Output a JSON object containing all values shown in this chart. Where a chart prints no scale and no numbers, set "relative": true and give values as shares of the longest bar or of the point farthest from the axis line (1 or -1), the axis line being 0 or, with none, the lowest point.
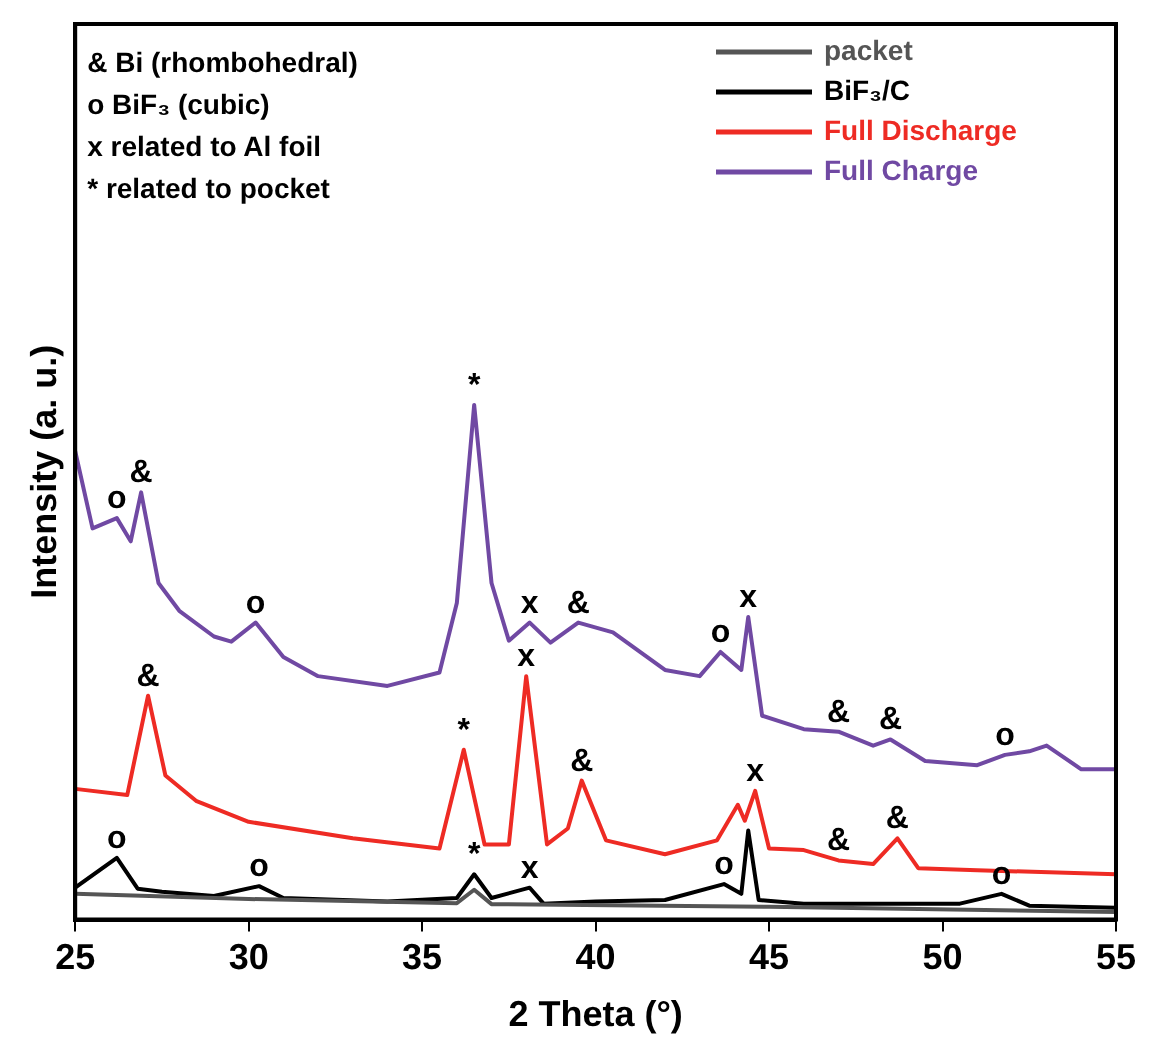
{
  "chart_data": {
    "type": "line",
    "xlabel": "2 Theta (°)",
    "ylabel": "Intensity (a. u.)",
    "relative": true,
    "xlim": [
      25,
      55
    ],
    "xticks": [
      25,
      30,
      35,
      40,
      45,
      50,
      55
    ],
    "grid": false,
    "legend": "top right",
    "marker": "none",
    "line_style": "solid",
    "series": [
      {
        "name": "packet",
        "color": "#555555",
        "x": [
          25,
          30,
          36,
          36.5,
          37,
          45,
          55
        ],
        "values": [
          0.05,
          0.04,
          0.032,
          0.058,
          0.03,
          0.025,
          0.015
        ]
      },
      {
        "name": "BiF₃/C",
        "color": "#000000",
        "x": [
          25,
          26.2,
          26.8,
          27.5,
          29,
          30.3,
          31,
          34,
          36,
          36.5,
          37,
          38.1,
          38.5,
          40,
          42,
          43.7,
          44.2,
          44.4,
          44.7,
          46,
          50.5,
          51.7,
          52.5,
          55
        ],
        "values": [
          0.062,
          0.12,
          0.06,
          0.054,
          0.046,
          0.065,
          0.042,
          0.035,
          0.042,
          0.088,
          0.042,
          0.062,
          0.031,
          0.035,
          0.038,
          0.069,
          0.05,
          0.173,
          0.038,
          0.031,
          0.031,
          0.05,
          0.027,
          0.023
        ]
      },
      {
        "name": "Full Discharge",
        "color": "#ee2b24",
        "x": [
          25,
          26.5,
          27.1,
          27.6,
          28.5,
          30,
          33,
          35.5,
          36.2,
          36.8,
          37.5,
          38,
          38.6,
          39.2,
          39.6,
          40.3,
          42,
          43.5,
          44.1,
          44.3,
          44.6,
          45,
          46,
          47,
          48,
          48.7,
          49.3,
          51,
          55
        ],
        "values": [
          0.254,
          0.242,
          0.435,
          0.28,
          0.23,
          0.19,
          0.158,
          0.138,
          0.33,
          0.146,
          0.146,
          0.473,
          0.146,
          0.177,
          0.27,
          0.154,
          0.127,
          0.154,
          0.223,
          0.192,
          0.25,
          0.138,
          0.135,
          0.115,
          0.108,
          0.158,
          0.1,
          0.096,
          0.088
        ]
      },
      {
        "name": "Full Charge",
        "color": "#7049a3",
        "x": [
          25,
          25.5,
          26.2,
          26.6,
          26.9,
          27.4,
          28,
          29,
          29.5,
          30.2,
          31,
          32,
          34,
          35.5,
          36,
          36.5,
          37,
          37.5,
          38.1,
          38.7,
          39.5,
          40.5,
          42,
          43,
          43.6,
          44.2,
          44.4,
          44.8,
          46,
          47,
          48,
          48.5,
          49.5,
          51,
          51.8,
          52.5,
          53,
          54,
          55
        ],
        "values": [
          0.91,
          0.76,
          0.78,
          0.735,
          0.83,
          0.654,
          0.6,
          0.55,
          0.54,
          0.577,
          0.51,
          0.473,
          0.454,
          0.48,
          0.615,
          1,
          0.654,
          0.542,
          0.577,
          0.538,
          0.577,
          0.558,
          0.485,
          0.473,
          0.52,
          0.485,
          0.588,
          0.396,
          0.37,
          0.365,
          0.338,
          0.35,
          0.308,
          0.3,
          0.32,
          0.327,
          0.338,
          0.292,
          0.292
        ]
      }
    ],
    "annotations": [
      "& Bi (rhombohedral)",
      "o BiF₃ (cubic)",
      "x related to Al foil",
      "* related to pocket",
      {
        "text": "o",
        "x": 26.2,
        "y": 0.78
      },
      {
        "text": "&",
        "x": 26.9,
        "y": 0.83
      },
      {
        "text": "o",
        "x": 30.2,
        "y": 0.577
      },
      {
        "text": "*",
        "x": 36.5,
        "y": 1
      },
      {
        "text": "x",
        "x": 38.1,
        "y": 0.577
      },
      {
        "text": "&",
        "x": 39.5,
        "y": 0.577
      },
      {
        "text": "o",
        "x": 43.6,
        "y": 0.52
      },
      {
        "text": "x",
        "x": 44.4,
        "y": 0.588
      },
      {
        "text": "&",
        "x": 47,
        "y": 0.365
      },
      {
        "text": "&",
        "x": 48.5,
        "y": 0.35
      },
      {
        "text": "o",
        "x": 51.8,
        "y": 0.32
      },
      {
        "text": "&",
        "x": 27.1,
        "y": 0.435
      },
      {
        "text": "*",
        "x": 36.2,
        "y": 0.33
      },
      {
        "text": "x",
        "x": 38,
        "y": 0.473
      },
      {
        "text": "&",
        "x": 39.6,
        "y": 0.27
      },
      {
        "text": "x",
        "x": 44.6,
        "y": 0.25
      },
      {
        "text": "&",
        "x": 47,
        "y": 0.115
      },
      {
        "text": "&",
        "x": 48.7,
        "y": 0.158
      },
      {
        "text": "o",
        "x": 26.2,
        "y": 0.12
      },
      {
        "text": "o",
        "x": 30.3,
        "y": 0.065
      },
      {
        "text": "*",
        "x": 36.5,
        "y": 0.088
      },
      {
        "text": "x",
        "x": 38.1,
        "y": 0.062
      },
      {
        "text": "o",
        "x": 43.7,
        "y": 0.069
      },
      {
        "text": "o",
        "x": 51.7,
        "y": 0.05
      }
    ]
  }
}
